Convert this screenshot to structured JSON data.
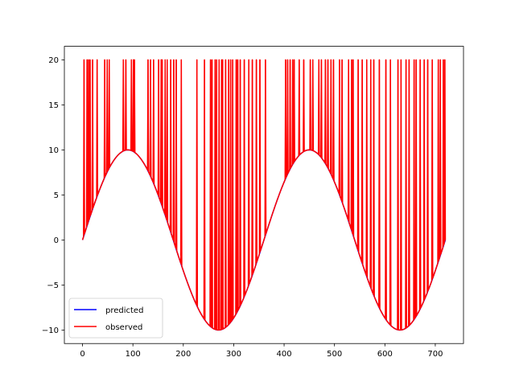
{
  "chart_data": {
    "type": "line",
    "title": "",
    "xlabel": "",
    "ylabel": "",
    "xlim": [
      -36,
      756
    ],
    "ylim": [
      -11.5,
      21.5
    ],
    "x_ticks": [
      0,
      100,
      200,
      300,
      400,
      500,
      600,
      700
    ],
    "y_ticks": [
      -10,
      -5,
      0,
      5,
      10,
      15,
      20
    ],
    "x_tick_labels": [
      "0",
      "100",
      "200",
      "300",
      "400",
      "500",
      "600",
      "700"
    ],
    "y_tick_labels": [
      "−10",
      "−5",
      "0",
      "5",
      "10",
      "15",
      "20"
    ],
    "grid": false,
    "legend_position": "lower-left",
    "series": [
      {
        "name": "predicted",
        "color": "#0000ff",
        "function": "10*sin(x degrees)",
        "x_range": [
          0,
          720
        ]
      },
      {
        "name": "observed",
        "color": "#ff0000",
        "function": "10*sin(x degrees) with spikes to 20",
        "x_range": [
          0,
          720
        ],
        "spike_value": 20,
        "spike_x": [
          3,
          9,
          12,
          15,
          20,
          29,
          44,
          49,
          53,
          81,
          86,
          97,
          101,
          103,
          130,
          135,
          141,
          151,
          156,
          158,
          164,
          168,
          175,
          181,
          186,
          196,
          227,
          242,
          254,
          257,
          263,
          266,
          271,
          276,
          278,
          284,
          290,
          294,
          298,
          305,
          308,
          313,
          321,
          330,
          337,
          345,
          352,
          363,
          403,
          407,
          412,
          417,
          420,
          430,
          439,
          452,
          457,
          469,
          474,
          482,
          487,
          493,
          498,
          510,
          515,
          528,
          534,
          537,
          547,
          555,
          564,
          572,
          578,
          589,
          602,
          611,
          626,
          632,
          642,
          648,
          658,
          662,
          670,
          678,
          685,
          694,
          706,
          710,
          716,
          719
        ]
      }
    ]
  }
}
